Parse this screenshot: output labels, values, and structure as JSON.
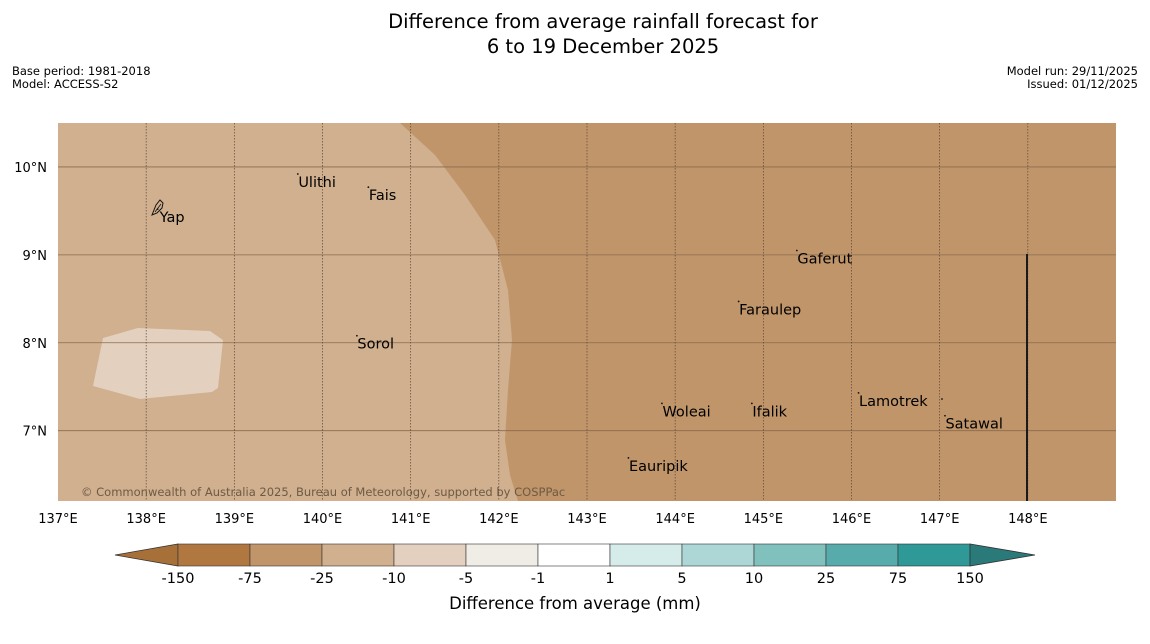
{
  "title": {
    "line1": "Difference from average rainfall forecast for",
    "line2": "6 to 19 December 2025"
  },
  "meta": {
    "base_period": "Base period: 1981-2018",
    "model": "Model: ACCESS-S2",
    "model_run": "Model run: 29/11/2025",
    "issued": "Issued: 01/12/2025"
  },
  "map": {
    "lat_range": [
      6.2,
      10.5
    ],
    "lon_range": [
      137.0,
      149.0
    ],
    "lat_ticks": [
      {
        "value": 10,
        "label": "10°N"
      },
      {
        "value": 9,
        "label": "9°N"
      },
      {
        "value": 8,
        "label": "8°N"
      },
      {
        "value": 7,
        "label": "7°N"
      }
    ],
    "lon_ticks": [
      {
        "value": 137,
        "label": "137°E"
      },
      {
        "value": 138,
        "label": "138°E"
      },
      {
        "value": 139,
        "label": "139°E"
      },
      {
        "value": 140,
        "label": "140°E"
      },
      {
        "value": 141,
        "label": "141°E"
      },
      {
        "value": 142,
        "label": "142°E"
      },
      {
        "value": 143,
        "label": "143°E"
      },
      {
        "value": 144,
        "label": "144°E"
      },
      {
        "value": 145,
        "label": "145°E"
      },
      {
        "value": 146,
        "label": "146°E"
      },
      {
        "value": 147,
        "label": "147°E"
      },
      {
        "value": 148,
        "label": "148°E"
      }
    ],
    "places": [
      {
        "name": "Ulithi",
        "lon": 139.72,
        "lat": 9.92
      },
      {
        "name": "Fais",
        "lon": 140.52,
        "lat": 9.77
      },
      {
        "name": "Yap",
        "lon": 138.13,
        "lat": 9.52
      },
      {
        "name": "Gaferut",
        "lon": 145.38,
        "lat": 9.05
      },
      {
        "name": "Faraulep",
        "lon": 144.72,
        "lat": 8.47
      },
      {
        "name": "Sorol",
        "lon": 140.39,
        "lat": 8.08
      },
      {
        "name": "Lamotrek",
        "lon": 146.08,
        "lat": 7.43
      },
      {
        "name": "Woleai",
        "lon": 143.85,
        "lat": 7.31
      },
      {
        "name": "Ifalik",
        "lon": 144.87,
        "lat": 7.31
      },
      {
        "name": "Satawal",
        "lon": 147.06,
        "lat": 7.17
      },
      {
        "name": "Eauripik",
        "lon": 143.47,
        "lat": 6.69
      }
    ],
    "colors": {
      "band_-25_-75": "#c0956a",
      "band_-10_-25": "#d0b08f",
      "band_-5_-10": "#e3d0bf"
    }
  },
  "copyright": "© Commonwealth of Australia 2025, Bureau of Meteorology, supported by COSPPac",
  "colorbar": {
    "title": "Difference from average (mm)",
    "labels": [
      "-150",
      "-75",
      "-25",
      "-10",
      "-5",
      "-1",
      "1",
      "5",
      "10",
      "25",
      "75",
      "150"
    ],
    "colors": [
      "#a87039",
      "#b07840",
      "#c0956a",
      "#d0b08f",
      "#e3d0bf",
      "#f0ece6",
      "#ffffff",
      "#d5ecea",
      "#acd7d6",
      "#80c1be",
      "#57abaa",
      "#2e9996",
      "#2a7a7a"
    ]
  }
}
